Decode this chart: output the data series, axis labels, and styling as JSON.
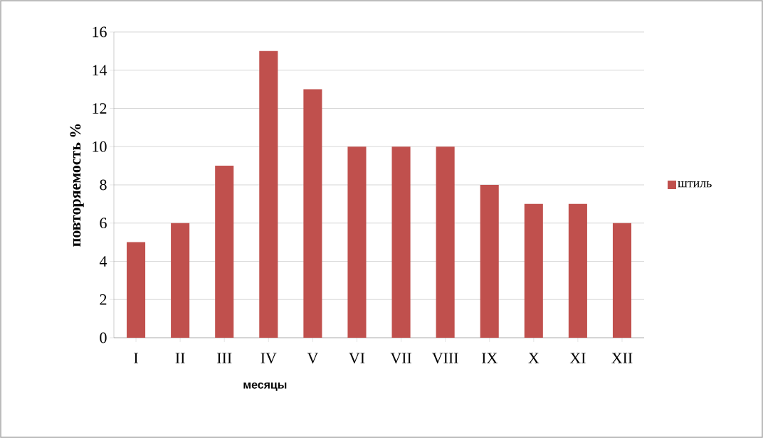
{
  "chart_data": {
    "type": "bar",
    "xlabel": "месяцы",
    "ylabel": "повторяемость %",
    "categories": [
      "I",
      "II",
      "III",
      "IV",
      "V",
      "VI",
      "VII",
      "VIII",
      "IX",
      "X",
      "XI",
      "XII"
    ],
    "series": [
      {
        "name": "штиль",
        "color": "#c0504d",
        "values": [
          5,
          6,
          9,
          15,
          13,
          10,
          10,
          10,
          8,
          7,
          7,
          6
        ]
      }
    ],
    "ylim": [
      0,
      16
    ],
    "yticks": [
      0,
      2,
      4,
      6,
      8,
      10,
      12,
      14,
      16
    ],
    "grid": "y",
    "legend": "right"
  }
}
